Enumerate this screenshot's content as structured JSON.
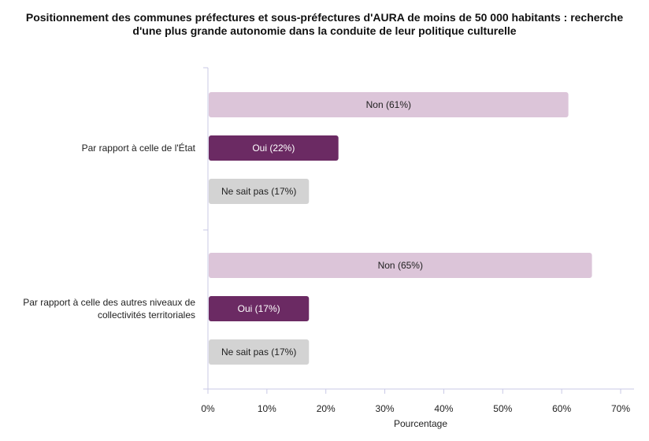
{
  "chart_data": {
    "type": "bar",
    "orientation": "horizontal",
    "title_lines": [
      "Positionnement des communes préfectures et sous-préfectures d'AURA de moins de 50 000 habitants : recherche",
      "d'une plus grande autonomie dans la conduite de leur politique culturelle"
    ],
    "xlabel": "Pourcentage",
    "ylabel": "",
    "xlim": [
      0,
      70
    ],
    "x_ticks": [
      "0%",
      "10%",
      "20%",
      "30%",
      "40%",
      "50%",
      "60%",
      "70%"
    ],
    "grid": false,
    "groups": [
      {
        "category_lines": [
          "Par rapport à celle de l'État"
        ],
        "bars": [
          {
            "label": "Non (61%)",
            "value": 61,
            "color": "#dcc5d9",
            "text_color": "#222222"
          },
          {
            "label": "Oui (22%)",
            "value": 22,
            "color": "#6b2a63",
            "text_color": "#ffffff"
          },
          {
            "label": "Ne sait pas (17%)",
            "value": 17,
            "color": "#d3d3d3",
            "text_color": "#222222"
          }
        ]
      },
      {
        "category_lines": [
          "Par rapport à celle des autres niveaux de",
          "collectivités territoriales"
        ],
        "bars": [
          {
            "label": "Non (65%)",
            "value": 65,
            "color": "#dcc5d9",
            "text_color": "#222222"
          },
          {
            "label": "Oui (17%)",
            "value": 17,
            "color": "#6b2a63",
            "text_color": "#ffffff"
          },
          {
            "label": "Ne sait pas (17%)",
            "value": 17,
            "color": "#d3d3d3",
            "text_color": "#222222"
          }
        ]
      }
    ],
    "colors": {
      "axis": "#c9c9e6",
      "tick_text": "#222222"
    }
  }
}
